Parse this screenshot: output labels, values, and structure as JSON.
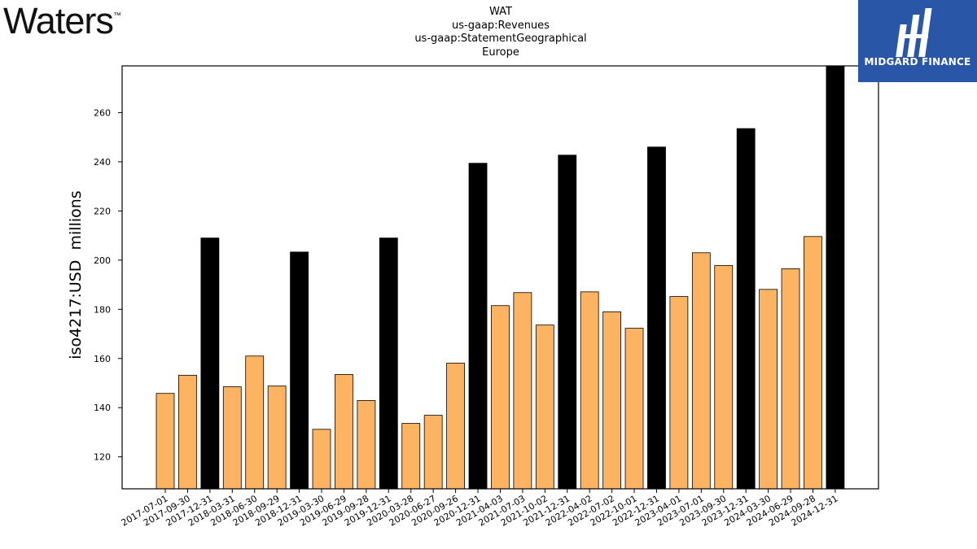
{
  "header": {
    "company_logo_text": "Waters",
    "company_logo_tm": "™",
    "brand_logo_text": "MIDGARD FINANCE",
    "title_lines": [
      "WAT",
      "us-gaap:Revenues",
      "us-gaap:StatementGeographical",
      "Europe"
    ]
  },
  "colors": {
    "quarter_bar": "#fdb462",
    "annual_bar": "#000000",
    "brand_bg": "#2a56a8"
  },
  "chart_data": {
    "type": "bar",
    "ylabel": "iso4217:USD  millions",
    "xlabel": "",
    "ylim": [
      107,
      279
    ],
    "yticks": [
      120,
      140,
      160,
      180,
      200,
      220,
      240,
      260
    ],
    "categories": [
      "2017-07-01",
      "2017-09-30",
      "2017-12-31",
      "2018-03-31",
      "2018-06-30",
      "2018-09-29",
      "2018-12-31",
      "2019-03-30",
      "2019-06-29",
      "2019-09-28",
      "2019-12-31",
      "2020-03-28",
      "2020-06-27",
      "2020-09-26",
      "2020-12-31",
      "2021-04-03",
      "2021-07-03",
      "2021-10-02",
      "2021-12-31",
      "2022-04-02",
      "2022-07-02",
      "2022-10-01",
      "2022-12-31",
      "2023-04-01",
      "2023-07-01",
      "2023-09-30",
      "2023-12-31",
      "2024-03-30",
      "2024-06-29",
      "2024-09-28",
      "2024-12-31"
    ],
    "values": [
      145.8,
      153.2,
      209.0,
      148.5,
      161.0,
      148.8,
      203.3,
      131.2,
      153.5,
      142.9,
      209.0,
      133.6,
      136.9,
      158.1,
      239.4,
      181.5,
      186.8,
      173.6,
      242.7,
      187.1,
      179.0,
      172.3,
      246.0,
      185.2,
      203.0,
      197.8,
      253.5,
      188.1,
      196.5,
      209.6,
      279.0
    ],
    "period_type": [
      "quarter",
      "quarter",
      "annual",
      "quarter",
      "quarter",
      "quarter",
      "annual",
      "quarter",
      "quarter",
      "quarter",
      "annual",
      "quarter",
      "quarter",
      "quarter",
      "annual",
      "quarter",
      "quarter",
      "quarter",
      "annual",
      "quarter",
      "quarter",
      "quarter",
      "annual",
      "quarter",
      "quarter",
      "quarter",
      "annual",
      "quarter",
      "quarter",
      "quarter",
      "annual"
    ],
    "grid": false,
    "legend": "none"
  }
}
